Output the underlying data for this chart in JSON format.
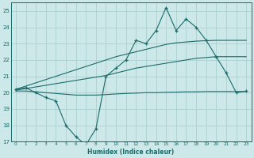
{
  "x": [
    0,
    1,
    2,
    3,
    4,
    5,
    6,
    7,
    8,
    9,
    10,
    11,
    12,
    13,
    14,
    15,
    16,
    17,
    18,
    19,
    20,
    21,
    22,
    23
  ],
  "main_y": [
    20.2,
    20.3,
    20.0,
    19.7,
    19.5,
    18.0,
    17.3,
    16.8,
    17.8,
    21.0,
    21.5,
    22.0,
    23.2,
    23.0,
    23.8,
    25.2,
    23.8,
    24.5,
    24.0,
    23.2,
    22.2,
    21.2,
    20.0,
    20.1
  ],
  "upper_y": [
    20.2,
    20.4,
    20.6,
    20.8,
    21.0,
    21.2,
    21.4,
    21.6,
    21.8,
    22.0,
    22.2,
    22.35,
    22.5,
    22.65,
    22.8,
    22.95,
    23.05,
    23.1,
    23.15,
    23.18,
    23.2,
    23.2,
    23.2,
    23.2
  ],
  "mid_y": [
    20.15,
    20.25,
    20.35,
    20.45,
    20.55,
    20.65,
    20.75,
    20.85,
    20.95,
    21.05,
    21.2,
    21.35,
    21.5,
    21.6,
    21.7,
    21.8,
    21.9,
    22.0,
    22.1,
    22.15,
    22.2,
    22.2,
    22.2,
    22.2
  ],
  "lower_y": [
    20.1,
    20.1,
    20.05,
    20.0,
    19.95,
    19.9,
    19.85,
    19.85,
    19.85,
    19.88,
    19.92,
    19.95,
    19.97,
    20.0,
    20.0,
    20.02,
    20.03,
    20.05,
    20.05,
    20.07,
    20.07,
    20.07,
    20.07,
    20.07
  ],
  "line_color": "#1a6b6b",
  "bg_color": "#cce8e8",
  "grid_color": "#aad0d0",
  "xlabel": "Humidex (Indice chaleur)",
  "ylim": [
    17,
    25.5
  ],
  "xlim": [
    -0.5,
    23.5
  ],
  "yticks": [
    17,
    18,
    19,
    20,
    21,
    22,
    23,
    24,
    25
  ],
  "xticks": [
    0,
    1,
    2,
    3,
    4,
    5,
    6,
    7,
    8,
    9,
    10,
    11,
    12,
    13,
    14,
    15,
    16,
    17,
    18,
    19,
    20,
    21,
    22,
    23
  ]
}
